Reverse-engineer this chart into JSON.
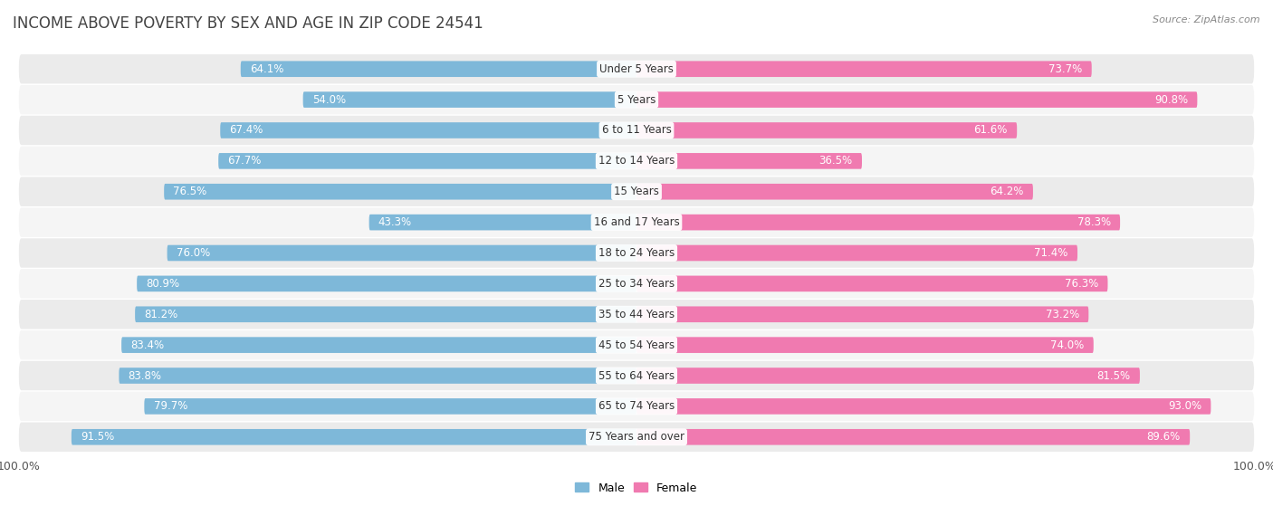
{
  "title": "INCOME ABOVE POVERTY BY SEX AND AGE IN ZIP CODE 24541",
  "source": "Source: ZipAtlas.com",
  "categories": [
    "Under 5 Years",
    "5 Years",
    "6 to 11 Years",
    "12 to 14 Years",
    "15 Years",
    "16 and 17 Years",
    "18 to 24 Years",
    "25 to 34 Years",
    "35 to 44 Years",
    "45 to 54 Years",
    "55 to 64 Years",
    "65 to 74 Years",
    "75 Years and over"
  ],
  "male_values": [
    64.1,
    54.0,
    67.4,
    67.7,
    76.5,
    43.3,
    76.0,
    80.9,
    81.2,
    83.4,
    83.8,
    79.7,
    91.5
  ],
  "female_values": [
    73.7,
    90.8,
    61.6,
    36.5,
    64.2,
    78.3,
    71.4,
    76.3,
    73.2,
    74.0,
    81.5,
    93.0,
    89.6
  ],
  "male_color": "#7eb8d9",
  "female_color": "#f07ab0",
  "male_color_light": "#c8dff0",
  "female_color_light": "#f9bdd5",
  "row_bg_color": "#e8e8e8",
  "row_bg_alt": "#f0f0f0",
  "max_val": 100.0,
  "bar_height": 0.52,
  "title_fontsize": 12,
  "label_fontsize": 8.5,
  "tick_fontsize": 9,
  "outside_label_threshold_male": 20,
  "outside_label_threshold_female": 20
}
